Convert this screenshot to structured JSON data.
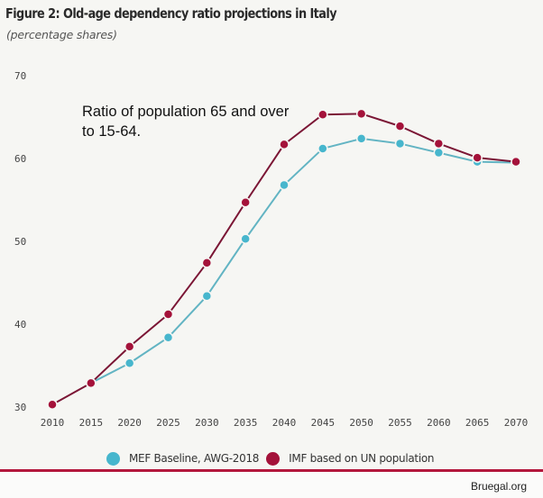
{
  "header": {
    "title": "Figure 2:  Old-age dependency ratio projections in Italy",
    "subtitle": "(percentage shares)"
  },
  "annotation": "Ratio of population 65 and over to 15-64.",
  "source": "Bruegal.org",
  "colors": {
    "mef_marker": "#47b6cd",
    "mef_line": "#62b4c3",
    "imf_marker": "#a4123a",
    "imf_line": "#7b1635",
    "rule": "#b3173c"
  },
  "chart_data": {
    "type": "line",
    "title": "Old-age dependency ratio projections in Italy",
    "subtitle": "(percentage shares)",
    "xlabel": "",
    "ylabel": "",
    "x": [
      2010,
      2015,
      2020,
      2025,
      2030,
      2035,
      2040,
      2045,
      2050,
      2055,
      2060,
      2065,
      2070
    ],
    "x_tick_labels": [
      "2010",
      "2015",
      "2020",
      "2025",
      "2030",
      "2035",
      "2040",
      "2045",
      "2050",
      "2055",
      "2060",
      "2065",
      "2070"
    ],
    "y_ticks": [
      30,
      40,
      50,
      60,
      70
    ],
    "y_tick_labels": [
      "30",
      "40",
      "50",
      "60",
      "70"
    ],
    "ylim": [
      30,
      70
    ],
    "grid": false,
    "legend_position": "bottom",
    "series": [
      {
        "name": "MEF Baseline, AWG-2018",
        "color": "#47b6cd",
        "values": [
          null,
          32.9,
          35.3,
          38.4,
          43.4,
          50.3,
          56.8,
          61.2,
          62.4,
          61.8,
          60.7,
          59.6,
          59.5
        ]
      },
      {
        "name": "IMF based on UN population",
        "color": "#a4123a",
        "values": [
          30.3,
          32.9,
          37.3,
          41.2,
          47.4,
          54.7,
          61.7,
          65.3,
          65.4,
          63.9,
          61.8,
          60.1,
          59.6
        ]
      }
    ],
    "annotations": [
      "Ratio of population 65 and over to 15-64."
    ]
  }
}
